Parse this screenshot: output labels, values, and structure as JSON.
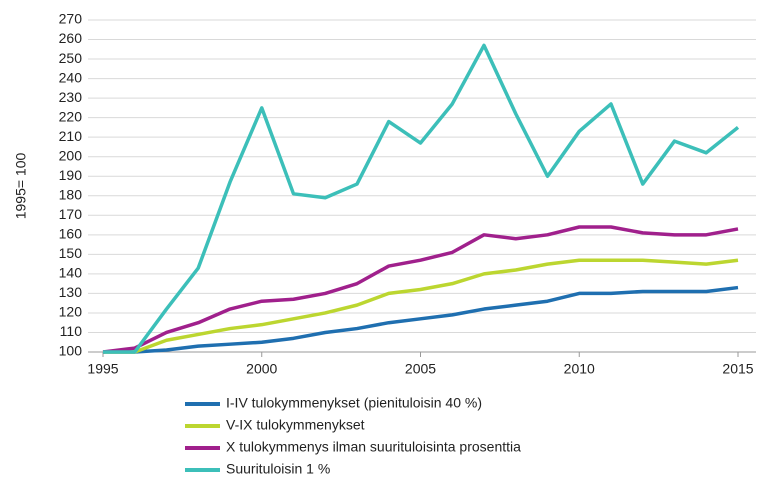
{
  "chart_data": {
    "type": "line",
    "y_axis_label": "1995= 100",
    "x": [
      1995,
      1996,
      1997,
      1998,
      1999,
      2000,
      2001,
      2002,
      2003,
      2004,
      2005,
      2006,
      2007,
      2008,
      2009,
      2010,
      2011,
      2012,
      2013,
      2014,
      2015
    ],
    "xlim": [
      1995,
      2015
    ],
    "xticks": [
      1995,
      2000,
      2005,
      2010,
      2015
    ],
    "ylim": [
      100,
      270
    ],
    "yticks": [
      100,
      110,
      120,
      130,
      140,
      150,
      160,
      170,
      180,
      190,
      200,
      210,
      220,
      230,
      240,
      250,
      260,
      270
    ],
    "grid": true,
    "legend": "bottom",
    "series": [
      {
        "name": "I-IV tulokymmenykset (pienituloisin 40 %)",
        "color": "#1f6fb0",
        "values": [
          100,
          100,
          101,
          103,
          104,
          105,
          107,
          110,
          112,
          115,
          117,
          119,
          122,
          124,
          126,
          130,
          130,
          131,
          131,
          131,
          133
        ]
      },
      {
        "name": "V-IX tulokymmenykset",
        "color": "#bcd630",
        "values": [
          100,
          100,
          106,
          109,
          112,
          114,
          117,
          120,
          124,
          130,
          132,
          135,
          140,
          142,
          145,
          147,
          147,
          147,
          146,
          145,
          147
        ]
      },
      {
        "name": "X tulokymmenys ilman suurituloisinta prosenttia",
        "color": "#a0208c",
        "values": [
          100,
          102,
          110,
          115,
          122,
          126,
          127,
          130,
          135,
          144,
          147,
          151,
          160,
          158,
          160,
          164,
          164,
          161,
          160,
          160,
          163
        ]
      },
      {
        "name": "Suurituloisin 1 %",
        "color": "#3cbfb9",
        "values": [
          100,
          100,
          122,
          143,
          187,
          225,
          181,
          179,
          186,
          218,
          207,
          227,
          257,
          222,
          190,
          213,
          227,
          186,
          208,
          202,
          215
        ]
      }
    ]
  }
}
